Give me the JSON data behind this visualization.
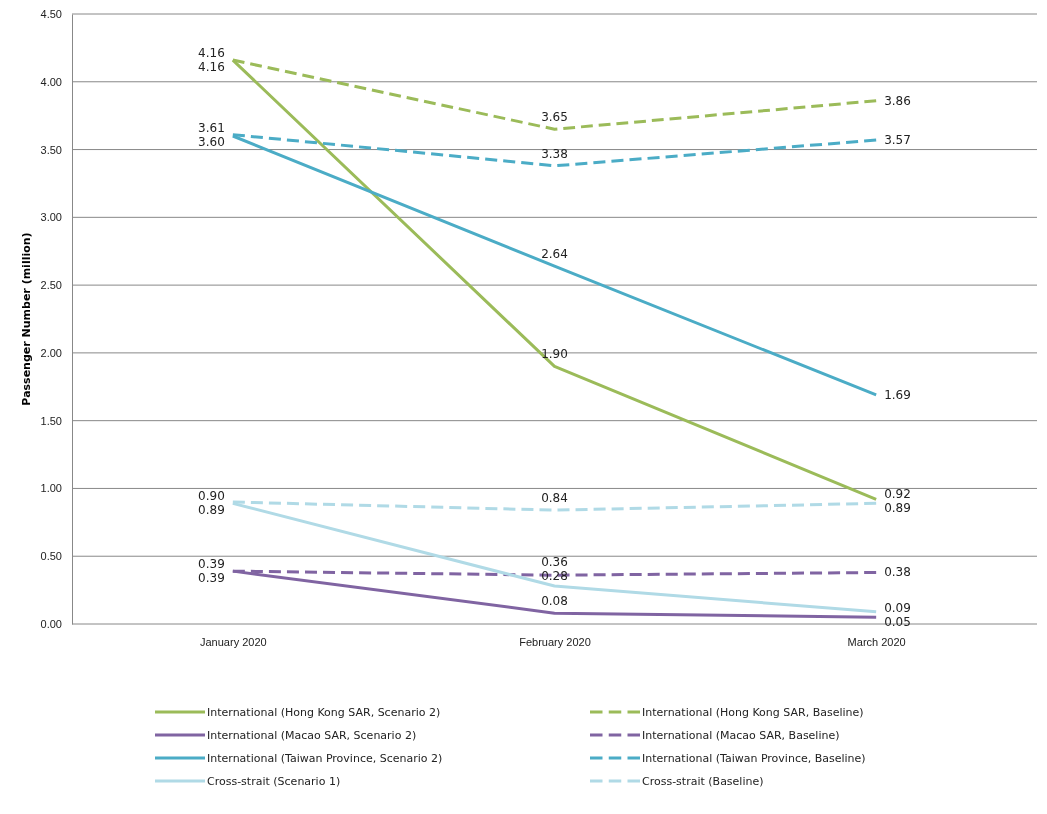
{
  "chart_data": {
    "type": "line",
    "ylabel": "Passenger Number (million)",
    "categories": [
      "January 2020",
      "February 2020",
      "March 2020"
    ],
    "series": [
      {
        "name": "International (Hong Kong SAR, Scenario 2)",
        "color": "#9bbb59",
        "line_style": "solid",
        "values": [
          4.16,
          1.9,
          0.92
        ],
        "value_labels": [
          "4.16",
          "1.90",
          "0.92"
        ]
      },
      {
        "name": "International (Hong Kong SAR, Baseline)",
        "color": "#9bbb59",
        "line_style": "dashed",
        "values": [
          4.16,
          3.65,
          3.86
        ],
        "value_labels": [
          "4.16",
          "3.65",
          "3.86"
        ]
      },
      {
        "name": "International (Macao SAR, Scenario 2)",
        "color": "#8064a2",
        "line_style": "solid",
        "values": [
          0.39,
          0.08,
          0.05
        ],
        "value_labels": [
          "0.39",
          "0.08",
          "0.05"
        ]
      },
      {
        "name": "International (Macao SAR, Baseline)",
        "color": "#8064a2",
        "line_style": "dashed",
        "values": [
          0.39,
          0.36,
          0.38
        ],
        "value_labels": [
          "0.39",
          "0.36",
          "0.38"
        ]
      },
      {
        "name": "International (Taiwan Province, Scenario 2)",
        "color": "#4bacc6",
        "line_style": "solid",
        "values": [
          3.6,
          2.64,
          1.69
        ],
        "value_labels": [
          "3.60",
          "2.64",
          "1.69"
        ]
      },
      {
        "name": "International (Taiwan Province, Baseline)",
        "color": "#4bacc6",
        "line_style": "dashed",
        "values": [
          3.61,
          3.38,
          3.57
        ],
        "value_labels": [
          "3.61",
          "3.38",
          "3.57"
        ]
      },
      {
        "name": "Cross-strait (Scenario 1)",
        "color": "#b0dae6",
        "line_style": "solid",
        "values": [
          0.89,
          0.28,
          0.09
        ],
        "value_labels": [
          "0.89",
          "0.28",
          "0.09"
        ]
      },
      {
        "name": "Cross-strait (Baseline)",
        "color": "#b0dae6",
        "line_style": "dashed",
        "values": [
          0.9,
          0.84,
          0.89
        ],
        "value_labels": [
          "0.90",
          "0.84",
          "0.89"
        ]
      }
    ],
    "ylim": [
      0,
      4.5
    ],
    "yticks": [
      {
        "value": 0,
        "label": "0.00"
      },
      {
        "value": 0.5,
        "label": "0.50"
      },
      {
        "value": 1,
        "label": "1.00"
      },
      {
        "value": 1.5,
        "label": "1.50"
      },
      {
        "value": 2,
        "label": "2.00"
      },
      {
        "value": 2.5,
        "label": "2.50"
      },
      {
        "value": 3,
        "label": "3.00"
      },
      {
        "value": 3.5,
        "label": "3.50"
      },
      {
        "value": 4,
        "label": "4.00"
      },
      {
        "value": 4.5,
        "label": "4.50"
      }
    ],
    "grid": "y",
    "legend": "bottom",
    "marker": "none"
  }
}
